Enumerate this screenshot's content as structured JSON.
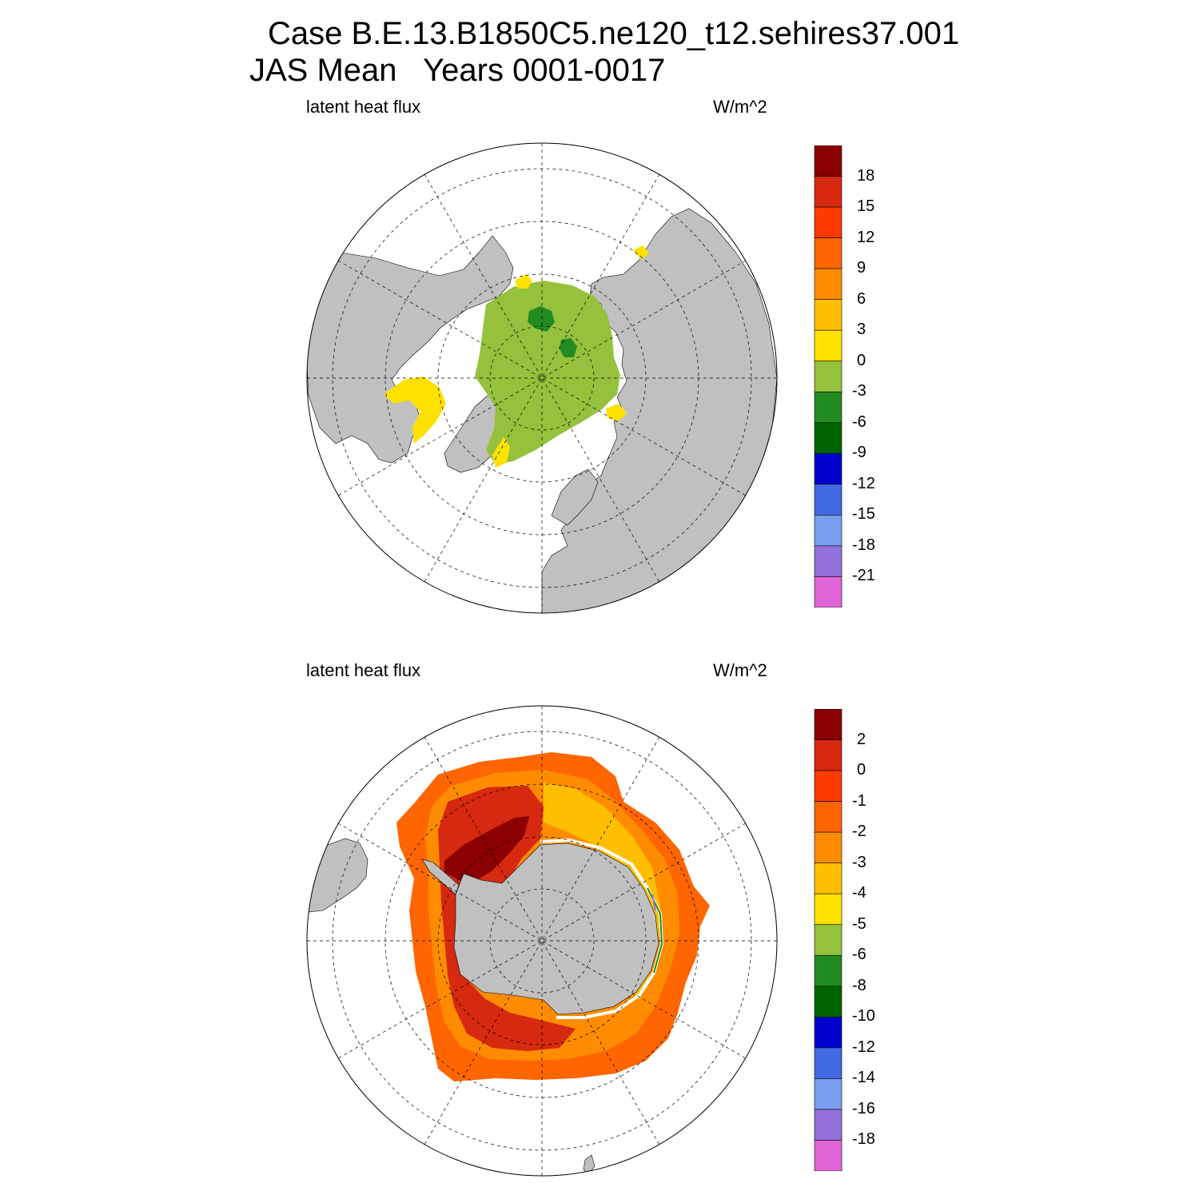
{
  "figure": {
    "title_line1": "Case B.E.13.B1850C5.ne120_t12.sehires37.001",
    "title_line2": "JAS Mean   Years 0001-0017"
  },
  "panels": [
    {
      "id": "north",
      "left_label": "latent heat flux",
      "right_label": "W/m^2",
      "hemisphere": "Northern Hemisphere polar stereographic",
      "colorbar": {
        "labels": [
          "18",
          "15",
          "12",
          "9",
          "6",
          "3",
          "0",
          "-3",
          "-6",
          "-9",
          "-12",
          "-15",
          "-18",
          "-21"
        ],
        "colors": [
          "#8b0000",
          "#d6290f",
          "#ff3a00",
          "#ff6500",
          "#ff8c00",
          "#ffbf00",
          "#ffe100",
          "#95c13d",
          "#228b22",
          "#006400",
          "#0000cd",
          "#4169e1",
          "#7a9ef0",
          "#9370db",
          "#e066d8"
        ]
      }
    },
    {
      "id": "south",
      "left_label": "latent heat flux",
      "right_label": "W/m^2",
      "hemisphere": "Southern Hemisphere polar stereographic",
      "colorbar": {
        "labels": [
          "2",
          "0",
          "-1",
          "-2",
          "-3",
          "-4",
          "-5",
          "-6",
          "-8",
          "-10",
          "-12",
          "-14",
          "-16",
          "-18"
        ],
        "colors": [
          "#8b0000",
          "#d6290f",
          "#ff3a00",
          "#ff6500",
          "#ff8c00",
          "#ffbf00",
          "#ffe100",
          "#95c13d",
          "#228b22",
          "#006400",
          "#0000cd",
          "#4169e1",
          "#7a9ef0",
          "#9370db",
          "#e066d8"
        ]
      }
    }
  ],
  "colors": {
    "land": "#c0c0c0",
    "ocean_missing": "#ffffff",
    "grid": "#000000"
  }
}
